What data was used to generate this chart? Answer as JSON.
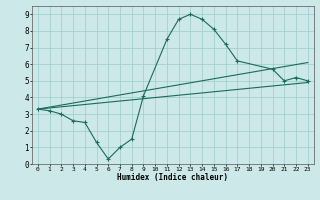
{
  "bg_color": "#cce8e8",
  "line_color": "#1a6b5a",
  "grid_color": "#99cccc",
  "xlabel": "Humidex (Indice chaleur)",
  "xlim": [
    -0.5,
    23.5
  ],
  "ylim": [
    0,
    9.5
  ],
  "xticks": [
    0,
    1,
    2,
    3,
    4,
    5,
    6,
    7,
    8,
    9,
    10,
    11,
    12,
    13,
    14,
    15,
    16,
    17,
    18,
    19,
    20,
    21,
    22,
    23
  ],
  "yticks": [
    0,
    1,
    2,
    3,
    4,
    5,
    6,
    7,
    8,
    9
  ],
  "line1_x": [
    0,
    1,
    2,
    3,
    4,
    5,
    6,
    7,
    8,
    9,
    11,
    12,
    13,
    14,
    15,
    16,
    17,
    20,
    21,
    22,
    23
  ],
  "line1_y": [
    3.3,
    3.2,
    3.0,
    2.6,
    2.5,
    1.3,
    0.3,
    1.0,
    1.5,
    4.1,
    7.5,
    8.7,
    9.0,
    8.7,
    8.1,
    7.2,
    6.2,
    5.7,
    5.0,
    5.2,
    5.0
  ],
  "line2_x": [
    0,
    23
  ],
  "line2_y": [
    3.3,
    6.1
  ],
  "line3_x": [
    0,
    23
  ],
  "line3_y": [
    3.3,
    4.9
  ],
  "marker": "+"
}
